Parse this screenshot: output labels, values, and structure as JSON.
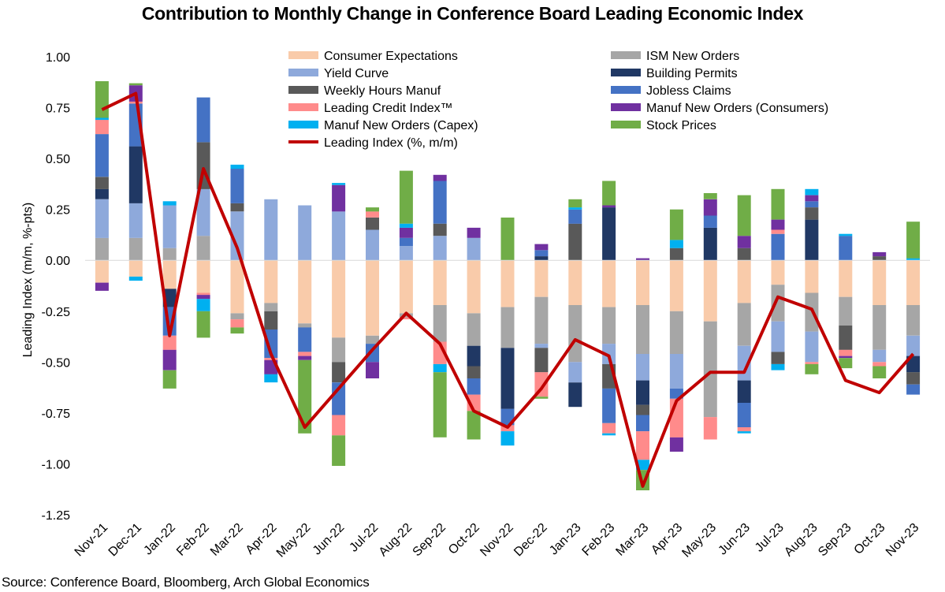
{
  "title": "Contribution to Monthly Change in Conference Board Leading Economic Index",
  "source": "Source: Conference Board, Bloomberg, Arch Global Economics",
  "chart_data": {
    "type": "bar",
    "stacked": true,
    "title": "Contribution to Monthly Change in Conference Board Leading Economic Index",
    "ylabel": "Leading Index (m/m, %-pts)",
    "xlabel": "",
    "ylim": [
      -1.25,
      1.0
    ],
    "yticks": [
      "1.00",
      "0.75",
      "0.50",
      "0.25",
      "0.00",
      "-0.25",
      "-0.50",
      "-0.75",
      "-1.00",
      "-1.25"
    ],
    "grid": false,
    "legend_position": "top",
    "categories": [
      "Nov-21",
      "Dec-21",
      "Jan-22",
      "Feb-22",
      "Mar-22",
      "Apr-22",
      "May-22",
      "Jun-22",
      "Jul-22",
      "Aug-22",
      "Sep-22",
      "Oct-22",
      "Nov-22",
      "Dec-22",
      "Jan-23",
      "Feb-23",
      "Mar-23",
      "Apr-23",
      "May-23",
      "Jun-23",
      "Jul-23",
      "Aug-23",
      "Sep-23",
      "Oct-23",
      "Nov-23"
    ],
    "x_tick_labels": [
      "Nov-21",
      "Dec-21",
      "Jan-22",
      "Feb-22",
      "Mar-22",
      "Apr-22",
      "May-22",
      "Jun-22",
      "Jul-22",
      "Aug-22",
      "Sep-22",
      "Oct-22",
      "Nov-22",
      "Dec-22",
      "Jan-23",
      "Feb-23",
      "Mar-23",
      "Apr-23",
      "May-23",
      "Jun-23",
      "Jul-23",
      "Aug-23",
      "Sep-23",
      "Oct-23",
      "Nov-23"
    ],
    "series": [
      {
        "name": "Consumer Expectations",
        "color": "#F9CBAA",
        "values": [
          -0.11,
          -0.08,
          -0.14,
          -0.16,
          -0.26,
          -0.21,
          -0.31,
          -0.38,
          -0.37,
          -0.26,
          -0.22,
          -0.26,
          -0.23,
          -0.18,
          -0.22,
          -0.23,
          -0.22,
          -0.25,
          -0.3,
          -0.21,
          -0.12,
          -0.16,
          -0.18,
          -0.22,
          -0.22
        ]
      },
      {
        "name": "ISM New Orders",
        "color": "#A6A6A6",
        "values": [
          0.11,
          0.11,
          0.06,
          0.12,
          -0.03,
          -0.04,
          -0.02,
          -0.12,
          -0.04,
          -0.02,
          -0.18,
          -0.16,
          -0.2,
          -0.23,
          -0.28,
          -0.18,
          -0.24,
          -0.21,
          -0.47,
          -0.21,
          -0.18,
          -0.19,
          -0.14,
          -0.22,
          -0.15
        ]
      },
      {
        "name": "Yield Curve",
        "color": "#8EA9DB",
        "values": [
          0.19,
          0.17,
          0.21,
          0.23,
          0.24,
          0.3,
          0.27,
          0.24,
          0.15,
          0.07,
          0.12,
          0.11,
          0.0,
          -0.02,
          -0.1,
          -0.1,
          -0.13,
          -0.17,
          0.0,
          -0.17,
          -0.15,
          -0.15,
          0.0,
          -0.06,
          -0.1
        ]
      },
      {
        "name": "Building Permits",
        "color": "#203864",
        "values": [
          0.05,
          0.28,
          -0.09,
          0.0,
          0.0,
          0.0,
          0.0,
          0.0,
          0.0,
          0.0,
          0.0,
          -0.1,
          -0.3,
          0.02,
          -0.12,
          0.26,
          -0.12,
          0.0,
          0.16,
          -0.11,
          0.0,
          0.2,
          0.0,
          0.0,
          -0.08
        ]
      },
      {
        "name": "Weekly Hours Manuf",
        "color": "#595959",
        "values": [
          0.06,
          0.0,
          0.0,
          0.23,
          0.04,
          -0.09,
          0.0,
          -0.1,
          0.06,
          0.0,
          0.06,
          -0.06,
          0.0,
          -0.12,
          0.18,
          -0.12,
          -0.05,
          0.06,
          0.0,
          0.06,
          -0.06,
          0.06,
          -0.12,
          0.02,
          -0.06
        ]
      },
      {
        "name": "Jobless Claims",
        "color": "#4472C4",
        "values": [
          0.21,
          0.21,
          -0.14,
          0.22,
          0.17,
          -0.14,
          -0.12,
          -0.16,
          -0.09,
          0.04,
          0.21,
          -0.08,
          -0.08,
          0.03,
          0.07,
          -0.17,
          -0.08,
          -0.05,
          0.06,
          -0.12,
          0.13,
          0.03,
          0.12,
          0.0,
          -0.05
        ]
      },
      {
        "name": "Leading Credit Index™",
        "color": "#FF8B8B",
        "values": [
          0.07,
          0.01,
          -0.07,
          -0.01,
          -0.04,
          -0.01,
          -0.02,
          -0.1,
          0.03,
          -0.01,
          -0.11,
          -0.08,
          -0.03,
          -0.12,
          0.0,
          -0.05,
          -0.14,
          -0.19,
          -0.11,
          -0.02,
          0.02,
          -0.01,
          -0.03,
          -0.02,
          0.0
        ]
      },
      {
        "name": "Manuf New Orders (Consumers)",
        "color": "#7030A0",
        "values": [
          -0.04,
          0.08,
          -0.1,
          -0.02,
          0.0,
          -0.07,
          -0.02,
          0.13,
          -0.08,
          0.05,
          0.03,
          0.05,
          0.0,
          0.03,
          0.0,
          0.01,
          0.01,
          -0.07,
          0.08,
          0.06,
          0.05,
          0.03,
          -0.01,
          0.02,
          0.0
        ]
      },
      {
        "name": "Manuf New Orders (Capex)",
        "color": "#00B0F0",
        "values": [
          0.01,
          -0.02,
          0.02,
          -0.06,
          0.02,
          -0.04,
          0.0,
          0.01,
          0.0,
          0.02,
          -0.04,
          0.0,
          -0.07,
          0.0,
          0.01,
          -0.01,
          -0.05,
          0.04,
          0.0,
          -0.01,
          -0.03,
          0.03,
          0.01,
          0.0,
          0.01
        ]
      },
      {
        "name": "Stock Prices",
        "color": "#70AD47",
        "values": [
          0.18,
          0.01,
          -0.09,
          -0.13,
          -0.03,
          0.0,
          -0.36,
          -0.15,
          0.02,
          0.26,
          -0.32,
          -0.14,
          0.21,
          -0.01,
          0.04,
          0.12,
          -0.1,
          0.15,
          0.03,
          0.2,
          0.15,
          -0.05,
          -0.05,
          -0.06,
          0.18
        ]
      }
    ],
    "line_series": {
      "name": "Leading Index (%, m/m)",
      "color": "#C00000",
      "values": [
        0.74,
        0.82,
        -0.37,
        0.45,
        0.06,
        -0.46,
        -0.82,
        -0.63,
        -0.44,
        -0.26,
        -0.41,
        -0.74,
        -0.82,
        -0.63,
        -0.39,
        -0.47,
        -1.11,
        -0.69,
        -0.55,
        -0.55,
        -0.18,
        -0.24,
        -0.59,
        -0.65,
        -0.46
      ]
    }
  }
}
